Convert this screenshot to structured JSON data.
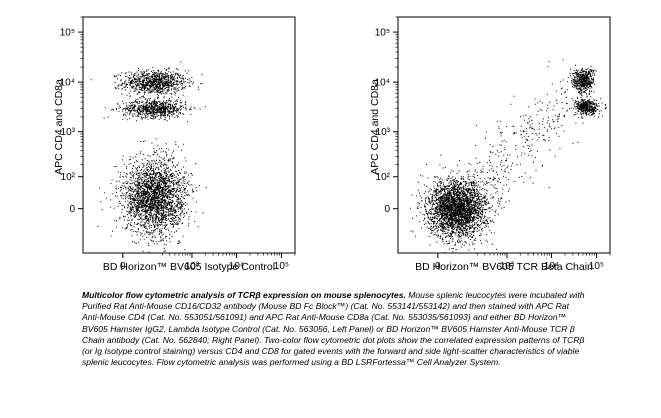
{
  "chart_data": [
    {
      "type": "scatter",
      "title": "",
      "xlabel": "BD Horizon™ BV605 Isotype Control",
      "ylabel": "APC CD4 and CD8a",
      "x_ticks": [
        "0",
        "10³",
        "10⁴",
        "10⁵"
      ],
      "y_ticks": [
        "0",
        "10²",
        "10³",
        "10⁴",
        "10⁵"
      ],
      "xlim": [
        -200,
        200000
      ],
      "ylim": [
        -200,
        200000
      ],
      "scale": "biexponential",
      "populations": [
        {
          "label": "CD4/CD8 high",
          "x_center": 120,
          "y_center": 10000,
          "relative_events": 0.22
        },
        {
          "label": "CD4/CD8 intermediate",
          "x_center": 120,
          "y_center": 3000,
          "relative_events": 0.18
        },
        {
          "label": "CD4/CD8 negative",
          "x_center": 120,
          "y_center": 10,
          "relative_events": 0.6
        }
      ]
    },
    {
      "type": "scatter",
      "title": "",
      "xlabel": "BD Horizon™ BV605 TCR Beta Chain",
      "ylabel": "APC CD4 and CD8a",
      "x_ticks": [
        "0",
        "10³",
        "10⁴",
        "10⁵"
      ],
      "y_ticks": [
        "0",
        "10²",
        "10³",
        "10⁴",
        "10⁵"
      ],
      "xlim": [
        -200,
        200000
      ],
      "ylim": [
        -200,
        200000
      ],
      "scale": "biexponential",
      "populations": [
        {
          "label": "TCRβ+ CD4/CD8 high",
          "x_center": 50000,
          "y_center": 11000,
          "relative_events": 0.12
        },
        {
          "label": "TCRβ+ CD4/CD8 intermediate",
          "x_center": 60000,
          "y_center": 3200,
          "relative_events": 0.1
        },
        {
          "label": "TCRβ- CD4/CD8 negative",
          "x_center": 50,
          "y_center": 0,
          "relative_events": 0.7
        },
        {
          "label": "diagonal spread",
          "x_center": 2000,
          "y_center": 300,
          "relative_events": 0.08
        }
      ]
    }
  ],
  "caption": {
    "bold": "Multicolor flow cytometric analysis of TCRβ expression on mouse splenocytes.",
    "text": " Mouse splenic leucocytes were incubated with Purified Rat Anti-Mouse CD16/CD32 antibody (Mouse BD Fc Block™) (Cat. No. 553141/553142) and then stained with APC Rat Anti-Mouse CD4 (Cat. No. 553051/561091) and APC Rat Anti-Mouse CD8a (Cat. No. 553035/561093) and either BD Horizon™ BV605 Hamster IgG2, Lambda Isotype Control (Cat. No. 563056, Left Panel) or BD Horizon™ BV605 Hamster Anti-Mouse TCR β Chain antibody (Cat. No. 562840; Right Panel). Two-color flow cytometric dot plots show the correlated expression patterns of TCRβ (or Ig Isotype control staining) versus CD4 and CD8 for gated events with the forward and side light-scatter characteristics of viable splenic leucocytes. Flow cytometric analysis was performed using a BD LSRFortessa™ Cell Analyzer System."
  }
}
